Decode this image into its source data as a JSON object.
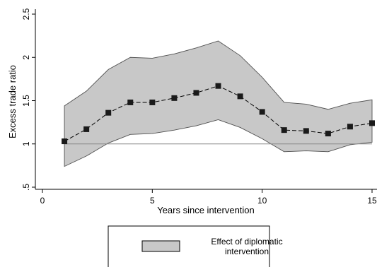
{
  "chart_data": {
    "type": "line",
    "xlabel": "Years since intervention",
    "ylabel": "Excess trade ratio",
    "xlim": [
      0,
      15
    ],
    "ylim": [
      0.5,
      2.5
    ],
    "x_ticks": [
      "0",
      "5",
      "10",
      "15"
    ],
    "x_tick_values": [
      0,
      5,
      10,
      15
    ],
    "y_ticks": [
      ".5",
      "1",
      "1.5",
      "2",
      "2.5"
    ],
    "y_tick_values": [
      0.5,
      1,
      1.5,
      2,
      2.5
    ],
    "reference_line": 1,
    "grid": false,
    "x": [
      1,
      2,
      3,
      4,
      5,
      6,
      7,
      8,
      9,
      10,
      11,
      12,
      13,
      14,
      15
    ],
    "estimate": [
      1.03,
      1.17,
      1.36,
      1.48,
      1.48,
      1.53,
      1.59,
      1.67,
      1.55,
      1.37,
      1.16,
      1.15,
      1.12,
      1.2,
      1.24
    ],
    "ci_upper": [
      1.44,
      1.61,
      1.86,
      2.0,
      1.99,
      2.04,
      2.11,
      2.19,
      2.02,
      1.77,
      1.48,
      1.46,
      1.4,
      1.47,
      1.51
    ],
    "ci_lower": [
      0.74,
      0.86,
      1.01,
      1.11,
      1.12,
      1.16,
      1.21,
      1.28,
      1.19,
      1.06,
      0.91,
      0.92,
      0.91,
      0.99,
      1.02
    ],
    "legend": {
      "placement": "bottom",
      "label_line1": "Effect of diplomatic",
      "label_line2": "intervention"
    },
    "colors": {
      "band_fill": "#c8c8c8",
      "band_stroke": "#505050",
      "line": "#000000",
      "marker": "#1a1a1a",
      "reference": "#888888"
    }
  }
}
